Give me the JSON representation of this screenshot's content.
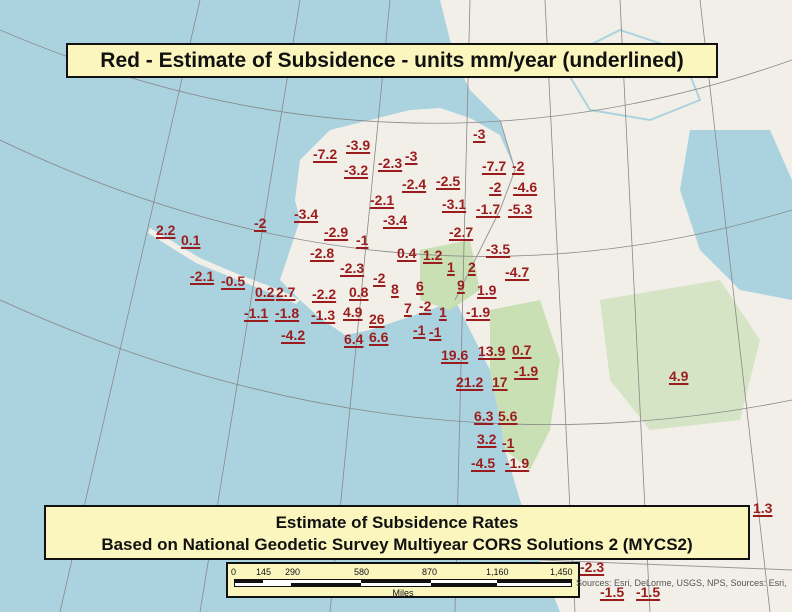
{
  "top_title": "Red - Estimate of Subsidence - units mm/year (underlined)",
  "bottom_title": {
    "line1": "Estimate of Subsidence Rates",
    "line2": "Based on National Geodetic Survey Multiyear CORS Solutions 2 (MYCS2)"
  },
  "scale_bar": {
    "ticks": [
      "0",
      "145",
      "290",
      "580",
      "870",
      "1,160",
      "1,450"
    ],
    "unit": "Miles"
  },
  "attribution": "Sources: Esri, DeLorme, USGS, NPS, Sources: Esri,",
  "colors": {
    "ocean": "#aad3df",
    "land": "#f2efe9",
    "forest": "#c8e0b4",
    "label": "#9b1c1c",
    "title_box": "#fbf6bd"
  },
  "subsidence_labels": [
    "-3",
    "-7.2",
    "-3.9",
    "-3.2",
    "-2.3",
    "-3",
    "-7.7",
    "-2",
    "-2",
    "-4.6",
    "-2.4",
    "-2.5",
    "-2.1",
    "-3.1",
    "-1.7",
    "-5.3",
    "2.2",
    "0.1",
    "-2",
    "-3.4",
    "-3.4",
    "-2.9",
    "-1",
    "-2.7",
    "-2.8",
    "0.4",
    "1.2",
    "-3.5",
    "-2.3",
    "1",
    "2",
    "-4.7",
    "-2.1",
    "-0.5",
    "0.2",
    "2.7",
    "-2.2",
    "0.8",
    "-2",
    "8",
    "9",
    "6",
    "1.9",
    "-1.1",
    "-1.8",
    "-1.3",
    "4.9",
    "26",
    "7",
    "-2",
    "1",
    "-1.9",
    "-4.2",
    "6.4",
    "6.6",
    "-1",
    "-1",
    "19.6",
    "13.9",
    "0.7",
    "21.2",
    "17",
    "-1.9",
    "4.9",
    "6.3",
    "5.6",
    "3.2",
    "-1",
    "-4.5",
    "-1.9",
    "1.3",
    "-2.3",
    "-1.5",
    "-1.5"
  ]
}
